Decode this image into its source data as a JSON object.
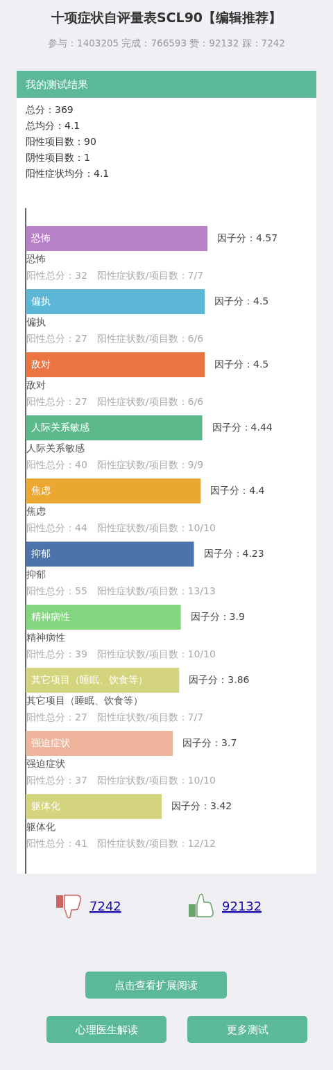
{
  "chart_data": {
    "type": "bar",
    "orientation": "horizontal",
    "title": "十项症状自评量表SCL90【编辑推荐】",
    "subtitle": "参与：1403205 完成：766593 赞：92132 踩：7242",
    "categories": [
      "恐怖",
      "偏执",
      "敌对",
      "人际关系敏感",
      "焦虑",
      "抑郁",
      "精神病性",
      "其它项目（睡眠、饮食等）",
      "强迫症状",
      "躯体化"
    ],
    "values": [
      4.57,
      4.5,
      4.5,
      4.44,
      4.4,
      4.23,
      3.9,
      3.86,
      3.7,
      3.42
    ],
    "colors": [
      "#b880c6",
      "#5cb6d6",
      "#ea7442",
      "#5bb98c",
      "#eaa833",
      "#4c73ab",
      "#84d57f",
      "#d4d47e",
      "#eeb49b",
      "#d4d47e"
    ],
    "value_labels": [
      "因子分：4.57",
      "因子分：4.5",
      "因子分：4.5",
      "因子分：4.44",
      "因子分：4.4",
      "因子分：4.23",
      "因子分：3.9",
      "因子分：3.86",
      "因子分：3.7",
      "因子分：3.42"
    ],
    "annotations": [
      "我的测试结果",
      "总分：369",
      "总均分：4.1",
      "阳性项目数：90",
      "阴性项目数：1",
      "阳性症状均分：4.1",
      "阳性总分：32　阳性症状数/项目数：7/7",
      "阳性总分：27　阳性症状数/项目数：6/6",
      "阳性总分：27　阳性症状数/项目数：6/6",
      "阳性总分：40　阳性症状数/项目数：9/9",
      "阳性总分：44　阳性症状数/项目数：10/10",
      "阳性总分：55　阳性症状数/项目数：13/13",
      "阳性总分：39　阳性症状数/项目数：10/10",
      "阳性总分：27　阳性症状数/项目数：7/7",
      "阳性总分：37　阳性症状数/项目数：10/10",
      "阳性总分：41　阳性症状数/项目数：12/12",
      "7242",
      "92132",
      "点击查看扩展阅读",
      "心理医生解读",
      "更多测试"
    ]
  }
}
